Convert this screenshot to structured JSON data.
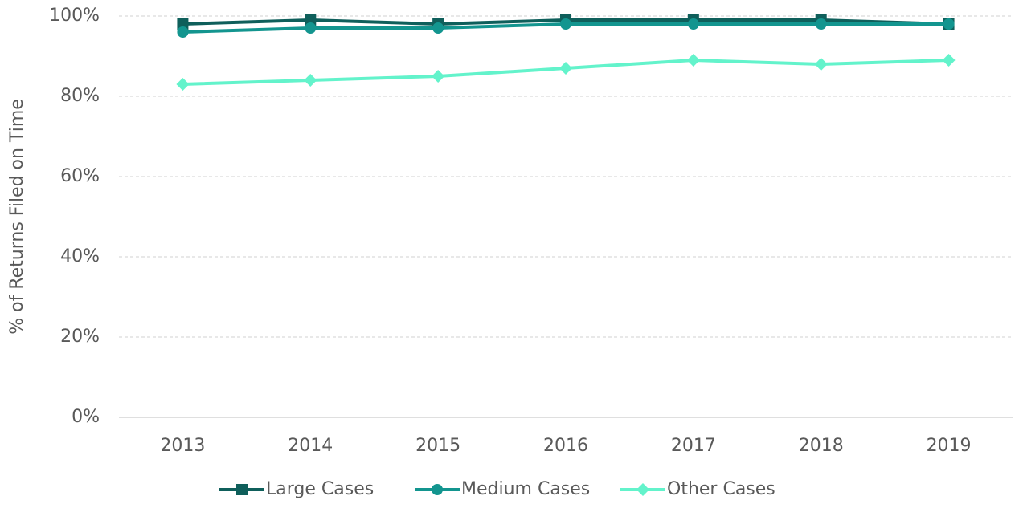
{
  "chart_data": {
    "type": "line",
    "y_label": "% of Returns Filed on Time",
    "categories": [
      "2013",
      "2014",
      "2015",
      "2016",
      "2017",
      "2018",
      "2019"
    ],
    "series": [
      {
        "name": "Large Cases",
        "color": "#0f5f5b",
        "marker": "square",
        "values": [
          98,
          99,
          98,
          99,
          99,
          99,
          98
        ]
      },
      {
        "name": "Medium Cases",
        "color": "#13958f",
        "marker": "circle",
        "values": [
          96,
          97,
          97,
          98,
          98,
          98,
          98
        ]
      },
      {
        "name": "Other Cases",
        "color": "#63f3cb",
        "marker": "diamond",
        "values": [
          83,
          84,
          85,
          87,
          89,
          88,
          89
        ]
      }
    ],
    "ylim": [
      0,
      100
    ],
    "yticks": [
      {
        "value": 0,
        "label": "0%"
      },
      {
        "value": 20,
        "label": "20%"
      },
      {
        "value": 40,
        "label": "40%"
      },
      {
        "value": 60,
        "label": "60%"
      },
      {
        "value": 80,
        "label": "80%"
      },
      {
        "value": 100,
        "label": "100%"
      }
    ],
    "grid": true,
    "legend": "bottom"
  }
}
